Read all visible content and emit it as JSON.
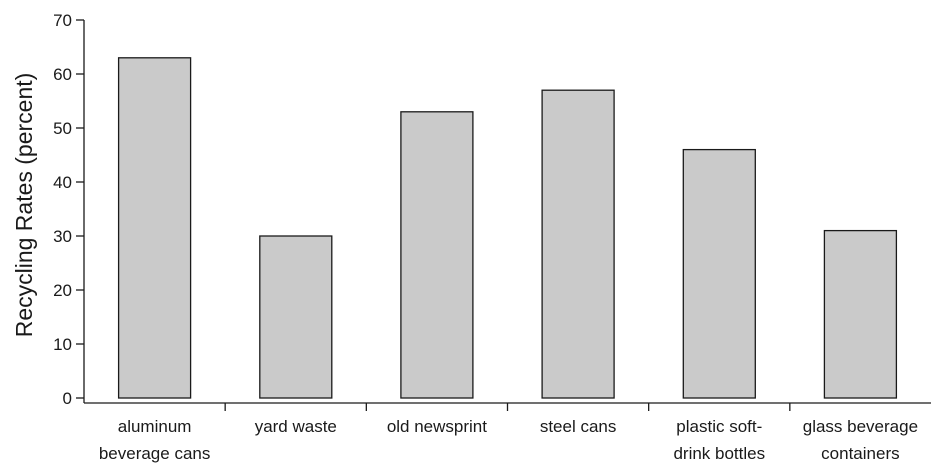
{
  "chart_data": {
    "type": "bar",
    "title": "",
    "xlabel": "",
    "ylabel": "Recycling Rates (percent)",
    "ylim": [
      0,
      70
    ],
    "yticks": [
      0,
      10,
      20,
      30,
      40,
      50,
      60,
      70
    ],
    "categories": [
      [
        "aluminum",
        "beverage cans"
      ],
      [
        "yard waste"
      ],
      [
        "old newsprint"
      ],
      [
        "steel cans"
      ],
      [
        "plastic soft-",
        "drink bottles"
      ],
      [
        "glass beverage",
        "containers"
      ]
    ],
    "values": [
      63,
      30,
      53,
      57,
      46,
      31
    ],
    "grid": false,
    "legend": "none",
    "colors": {
      "bar_fill": "#cacaca",
      "bar_stroke": "#1a1a1a",
      "axis": "#1a1a1a"
    }
  }
}
